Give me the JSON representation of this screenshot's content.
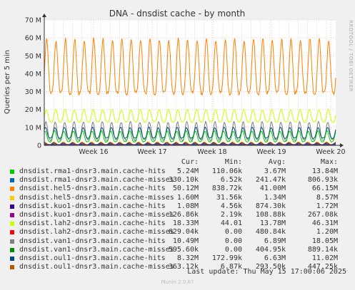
{
  "title": "DNA - dnsdist cache - by month",
  "side_label": "RRDTOOL / TOBI OETIKER",
  "footer": "Munin 2.0.67",
  "last_update": "Last update: Thu May 15 17:00:06 2025",
  "legend_headers": [
    "Cur:",
    "Min:",
    "Avg:",
    "Max:"
  ],
  "legend": [
    {
      "name": "dnsdist.rma1-dnsr3.main.cache-hits",
      "cur": "5.24M",
      "min": "110.06k",
      "avg": "3.67M",
      "max": "13.84M",
      "color": "#00cc00"
    },
    {
      "name": "dnsdist.rma1-dnsr3.main.cache-misses",
      "cur": "330.10k",
      "min": "6.52k",
      "avg": "241.47k",
      "max": "806.93k",
      "color": "#0066b3"
    },
    {
      "name": "dnsdist.hel5-dnsr3.main.cache-hits",
      "cur": "50.12M",
      "min": "838.72k",
      "avg": "41.00M",
      "max": "66.15M",
      "color": "#ff8000"
    },
    {
      "name": "dnsdist.hel5-dnsr3.main.cache-misses",
      "cur": "1.60M",
      "min": "31.56k",
      "avg": "1.34M",
      "max": "8.57M",
      "color": "#ffcc00"
    },
    {
      "name": "dnsdist.kuo1-dnsr3.main.cache-hits",
      "cur": "1.08M",
      "min": "4.56k",
      "avg": "874.30k",
      "max": "1.72M",
      "color": "#330099"
    },
    {
      "name": "dnsdist.kuo1-dnsr3.main.cache-misses",
      "cur": "126.86k",
      "min": "2.19k",
      "avg": "108.88k",
      "max": "267.08k",
      "color": "#990099"
    },
    {
      "name": "dnsdist.lah2-dnsr3.main.cache-hits",
      "cur": "18.33M",
      "min": "44.01",
      "avg": "13.78M",
      "max": "46.31M",
      "color": "#ccff00"
    },
    {
      "name": "dnsdist.lah2-dnsr3.main.cache-misses",
      "cur": "629.04k",
      "min": "0.00",
      "avg": "480.84k",
      "max": "1.20M",
      "color": "#ff0000"
    },
    {
      "name": "dnsdist.van1-dnsr3.main.cache-hits",
      "cur": "10.49M",
      "min": "0.00",
      "avg": "6.89M",
      "max": "18.05M",
      "color": "#808080"
    },
    {
      "name": "dnsdist.van1-dnsr3.main.cache-misses",
      "cur": "595.60k",
      "min": "0.00",
      "avg": "404.95k",
      "max": "889.14k",
      "color": "#008f00"
    },
    {
      "name": "dnsdist.oul1-dnsr3.main.cache-hits",
      "cur": "8.32M",
      "min": "172.99k",
      "avg": "6.63M",
      "max": "11.02M",
      "color": "#00487d"
    },
    {
      "name": "dnsdist.oul1-dnsr3.main.cache-misses",
      "cur": "363.12k",
      "min": "6.87k",
      "avg": "293.50k",
      "max": "447.25k",
      "color": "#b35a00"
    }
  ],
  "chart_data": {
    "type": "line",
    "title": "DNA - dnsdist cache - by month",
    "ylabel": "Queries per 5 min",
    "xlabel": "",
    "y_ticks": [
      "0",
      "10 M",
      "20 M",
      "30 M",
      "40 M",
      "50 M",
      "60 M",
      "70 M"
    ],
    "ylim": [
      0,
      70
    ],
    "x_ticks": [
      "Week 16",
      "Week 17",
      "Week 18",
      "Week 19",
      "Week 20"
    ],
    "grid": true,
    "days": 31,
    "series": [
      {
        "name": "dnsdist.hel5-dnsr3.main.cache-hits",
        "color": "#ff8000",
        "low": 29,
        "high": 59,
        "note": "daily cycle, values in millions"
      },
      {
        "name": "dnsdist.lah2-dnsr3.main.cache-hits",
        "color": "#ccff00",
        "low": 13,
        "high": 20
      },
      {
        "name": "dnsdist.van1-dnsr3.main.cache-hits",
        "color": "#808080",
        "low": 3,
        "high": 13
      },
      {
        "name": "dnsdist.oul1-dnsr3.main.cache-hits",
        "color": "#00487d",
        "low": 4,
        "high": 10
      },
      {
        "name": "dnsdist.rma1-dnsr3.main.cache-hits",
        "color": "#00cc00",
        "low": 2,
        "high": 8
      },
      {
        "name": "dnsdist.hel5-dnsr3.main.cache-misses",
        "color": "#ffcc00",
        "low": 0.5,
        "high": 2
      },
      {
        "name": "dnsdist.kuo1-dnsr3.main.cache-hits",
        "color": "#330099",
        "low": 0.4,
        "high": 1.5
      },
      {
        "name": "dnsdist.lah2-dnsr3.main.cache-misses",
        "color": "#ff0000",
        "low": 0.2,
        "high": 1
      },
      {
        "name": "dnsdist.van1-dnsr3.main.cache-misses",
        "color": "#008f00",
        "low": 0.2,
        "high": 0.8
      },
      {
        "name": "dnsdist.oul1-dnsr3.main.cache-misses",
        "color": "#b35a00",
        "low": 0.2,
        "high": 0.4
      },
      {
        "name": "dnsdist.rma1-dnsr3.main.cache-misses",
        "color": "#0066b3",
        "low": 0.1,
        "high": 0.6
      },
      {
        "name": "dnsdist.kuo1-dnsr3.main.cache-misses",
        "color": "#990099",
        "low": 0.05,
        "high": 0.2
      }
    ]
  }
}
